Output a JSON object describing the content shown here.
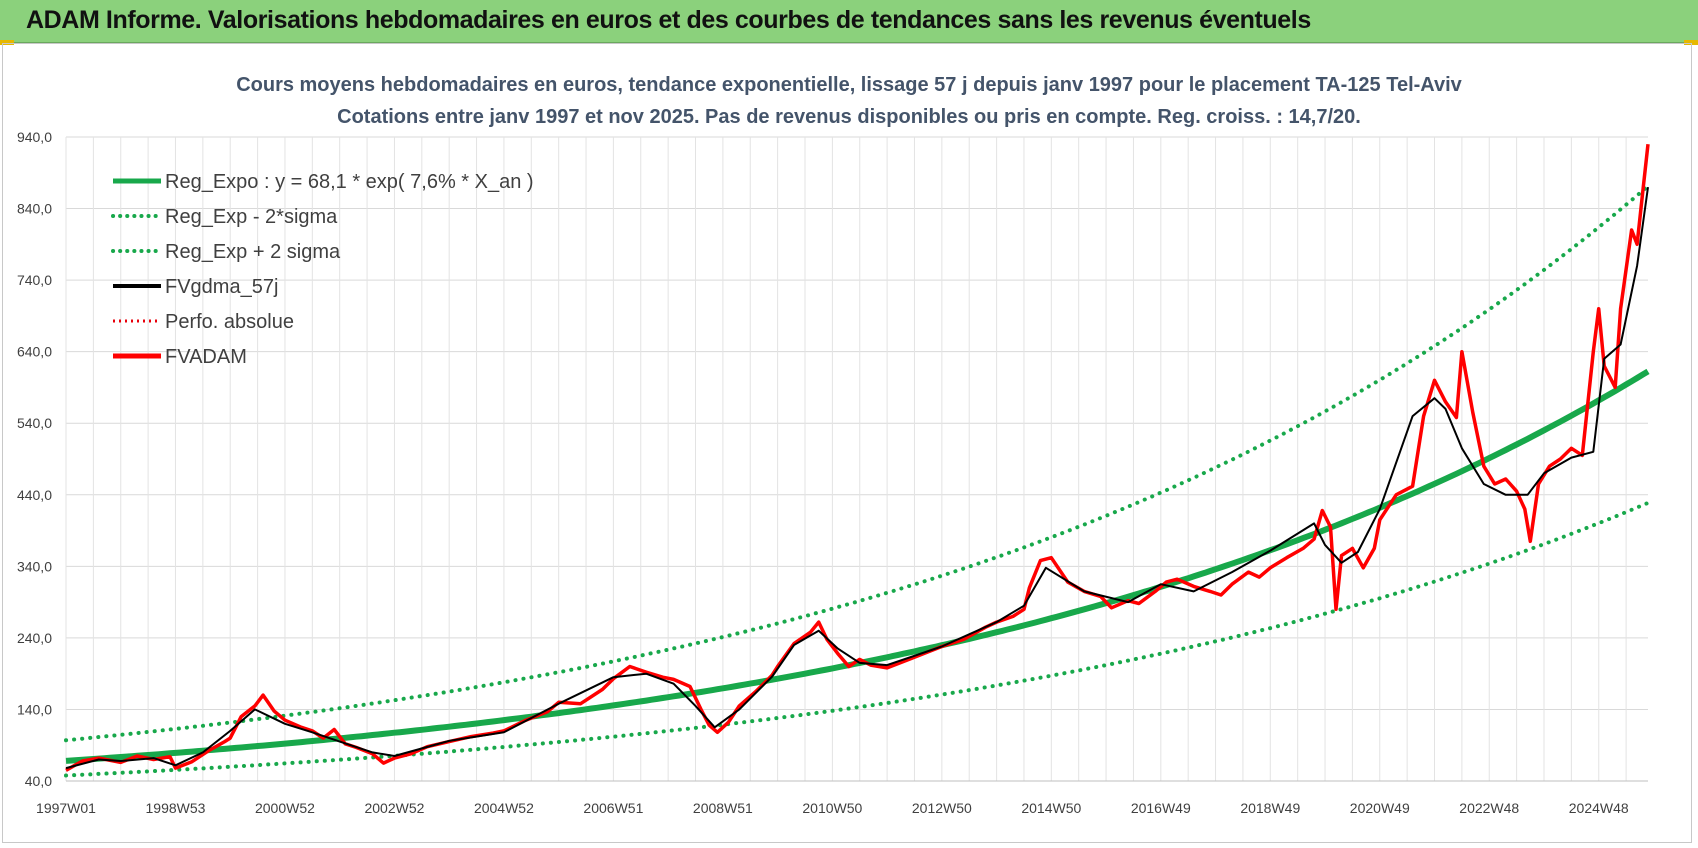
{
  "banner": {
    "title": "ADAM Informe. Valorisations hebdomadaires en euros et des courbes de tendances sans les revenus éventuels",
    "color": "#8bd17c"
  },
  "chart_data": {
    "type": "line",
    "title": "Cours moyens hebdomadaires en euros, tendance exponentielle, lissage 57 j depuis janv 1997  pour le placement TA-125 Tel-Aviv",
    "subtitle": "Cotations entre janv 1997 et nov 2025. Pas de revenus disponibles ou pris en compte. Reg. croiss. : 14,7/20.",
    "xlabel": "",
    "ylabel": "",
    "xlim": [
      1997.0,
      2025.9
    ],
    "ylim": [
      40,
      940
    ],
    "yticks": [
      40,
      140,
      240,
      340,
      440,
      540,
      640,
      740,
      840,
      940
    ],
    "ytick_labels": [
      "40,0",
      "140,0",
      "240,0",
      "340,0",
      "440,0",
      "540,0",
      "640,0",
      "740,0",
      "840,0",
      "940,0"
    ],
    "xticks": [
      1997.0,
      1999.0,
      2001.0,
      2003.0,
      2005.0,
      2007.0,
      2009.0,
      2011.0,
      2013.0,
      2015.0,
      2017.0,
      2019.0,
      2021.0,
      2023.0,
      2025.0
    ],
    "xtick_labels": [
      "1997W01",
      "1998W53",
      "2000W52",
      "2002W52",
      "2004W52",
      "2006W51",
      "2008W51",
      "2010W50",
      "2012W50",
      "2014W50",
      "2016W49",
      "2018W49",
      "2020W49",
      "2022W48",
      "2024W48"
    ],
    "grid": true,
    "legend_position": "top-left",
    "legend": [
      {
        "label": "Reg_Expo : y = 68,1 * exp( 7,6% *  X_an )",
        "color": "#18a84b",
        "style": "solid-thick"
      },
      {
        "label": "Reg_Exp - 2*sigma",
        "color": "#18a84b",
        "style": "dotted"
      },
      {
        "label": "Reg_Exp + 2 sigma",
        "color": "#18a84b",
        "style": "dotted"
      },
      {
        "label": "FVgdma_57j",
        "color": "#000000",
        "style": "solid"
      },
      {
        "label": "Perfo. absolue",
        "color": "#e8000b",
        "style": "dotted-thin"
      },
      {
        "label": "FVADAM",
        "color": "#ff0000",
        "style": "solid-thick"
      }
    ],
    "regression": {
      "a": 68.1,
      "rate": 0.076,
      "lower_factor": 0.7,
      "upper_factor": 1.423
    },
    "series": [
      {
        "name": "FVADAM",
        "color": "#ff0000",
        "x": [
          1997.0,
          1997.3,
          1997.6,
          1998.0,
          1998.3,
          1998.6,
          1998.9,
          1999.0,
          1999.3,
          1999.6,
          1999.9,
          2000.0,
          2000.2,
          2000.45,
          2000.6,
          2000.8,
          2001.0,
          2001.3,
          2001.5,
          2001.7,
          2001.9,
          2002.1,
          2002.3,
          2002.6,
          2002.8,
          2003.0,
          2003.3,
          2003.6,
          2004.0,
          2004.4,
          2004.8,
          2005.0,
          2005.4,
          2005.8,
          2006.0,
          2006.4,
          2006.8,
          2007.0,
          2007.3,
          2007.6,
          2007.9,
          2008.1,
          2008.4,
          2008.6,
          2008.75,
          2008.9,
          2009.1,
          2009.3,
          2009.6,
          2009.9,
          2010.0,
          2010.3,
          2010.6,
          2010.75,
          2010.9,
          2011.1,
          2011.3,
          2011.5,
          2011.7,
          2012.0,
          2012.4,
          2012.8,
          2013.0,
          2013.4,
          2013.8,
          2014.0,
          2014.3,
          2014.5,
          2014.6,
          2014.8,
          2015.0,
          2015.3,
          2015.6,
          2015.9,
          2016.1,
          2016.4,
          2016.6,
          2016.9,
          2017.1,
          2017.3,
          2017.6,
          2017.9,
          2018.1,
          2018.3,
          2018.6,
          2018.8,
          2019.0,
          2019.3,
          2019.6,
          2019.8,
          2019.95,
          2020.1,
          2020.2,
          2020.3,
          2020.5,
          2020.7,
          2020.9,
          2021.0,
          2021.3,
          2021.6,
          2021.8,
          2022.0,
          2022.2,
          2022.4,
          2022.5,
          2022.7,
          2022.9,
          2023.1,
          2023.3,
          2023.5,
          2023.65,
          2023.75,
          2023.9,
          2024.1,
          2024.3,
          2024.5,
          2024.7,
          2024.9,
          2025.0,
          2025.1,
          2025.3,
          2025.4,
          2025.6,
          2025.7,
          2025.8,
          2025.9
        ],
        "values": [
          55,
          68,
          72,
          66,
          75,
          70,
          74,
          58,
          67,
          82,
          95,
          100,
          130,
          145,
          160,
          138,
          125,
          115,
          110,
          100,
          112,
          92,
          87,
          78,
          65,
          72,
          78,
          88,
          95,
          102,
          107,
          110,
          125,
          137,
          150,
          148,
          168,
          183,
          200,
          192,
          185,
          182,
          172,
          140,
          118,
          108,
          122,
          145,
          165,
          188,
          200,
          232,
          248,
          262,
          238,
          218,
          200,
          210,
          202,
          198,
          210,
          222,
          228,
          238,
          255,
          262,
          270,
          280,
          310,
          348,
          352,
          318,
          305,
          298,
          282,
          292,
          288,
          305,
          318,
          322,
          312,
          305,
          300,
          315,
          332,
          325,
          338,
          352,
          365,
          378,
          418,
          395,
          280,
          355,
          365,
          338,
          365,
          405,
          440,
          452,
          550,
          600,
          570,
          548,
          640,
          555,
          480,
          455,
          462,
          445,
          420,
          375,
          455,
          480,
          490,
          505,
          495,
          640,
          700,
          620,
          590,
          700,
          810,
          790,
          860,
          930
        ]
      },
      {
        "name": "FVgdma_57j",
        "color": "#000000",
        "x": [
          1997.0,
          1997.6,
          1998.0,
          1998.6,
          1999.0,
          1999.5,
          2000.0,
          2000.45,
          2001.0,
          2001.5,
          2002.0,
          2002.6,
          2003.0,
          2004.0,
          2005.0,
          2006.0,
          2007.0,
          2007.6,
          2008.1,
          2008.5,
          2008.85,
          2009.3,
          2009.9,
          2010.3,
          2010.75,
          2011.1,
          2011.5,
          2012.0,
          2013.0,
          2014.0,
          2014.5,
          2014.9,
          2015.6,
          2016.4,
          2017.0,
          2017.6,
          2018.3,
          2019.0,
          2019.8,
          2020.0,
          2020.3,
          2020.6,
          2021.0,
          2021.6,
          2022.0,
          2022.2,
          2022.5,
          2022.9,
          2023.3,
          2023.7,
          2024.0,
          2024.5,
          2024.9,
          2025.1,
          2025.4,
          2025.7,
          2025.9
        ],
        "values": [
          58,
          70,
          68,
          72,
          62,
          80,
          110,
          140,
          120,
          108,
          95,
          80,
          75,
          96,
          108,
          148,
          185,
          190,
          176,
          145,
          115,
          140,
          186,
          230,
          250,
          225,
          205,
          202,
          228,
          262,
          285,
          338,
          305,
          290,
          315,
          305,
          332,
          362,
          400,
          370,
          345,
          360,
          420,
          550,
          575,
          560,
          505,
          455,
          440,
          440,
          470,
          492,
          500,
          630,
          650,
          760,
          870
        ]
      }
    ]
  }
}
